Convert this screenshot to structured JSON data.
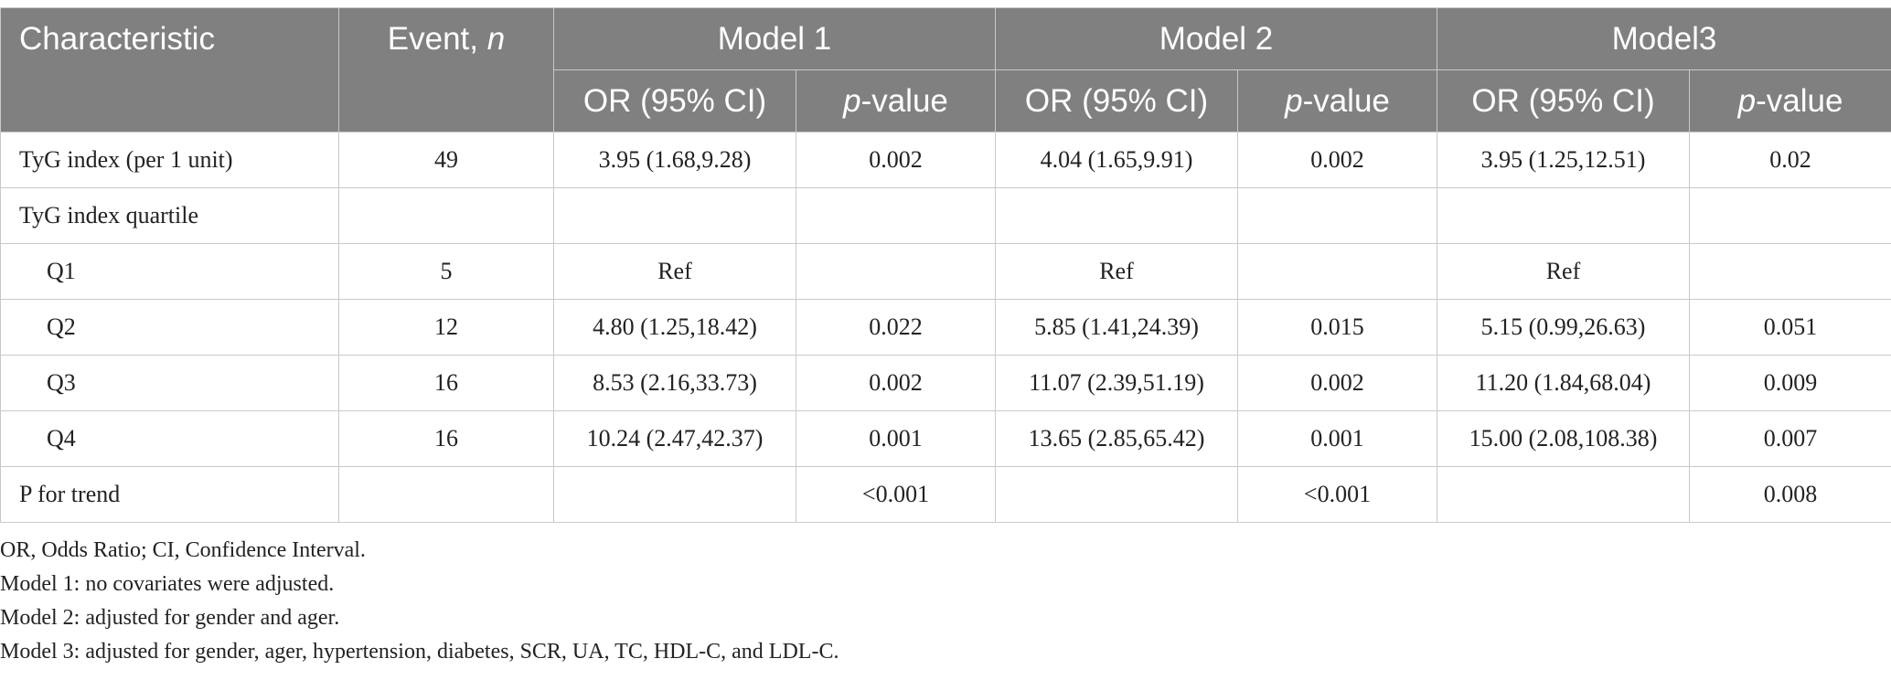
{
  "header": {
    "characteristic": "Characteristic",
    "event_prefix": "Event, ",
    "event_n": "n",
    "models": [
      "Model 1",
      "Model 2",
      "Model3"
    ],
    "or_label": "OR (95% CI)",
    "p_prefix": "p",
    "p_suffix": "-value"
  },
  "rows": [
    {
      "label": "TyG index (per 1 unit)",
      "event": "49",
      "m1_or": "3.95 (1.68,9.28)",
      "m1_p": "0.002",
      "m2_or": "4.04 (1.65,9.91)",
      "m2_p": "0.002",
      "m3_or": "3.95 (1.25,12.51)",
      "m3_p": "0.02"
    },
    {
      "label": "TyG index quartile",
      "event": "",
      "m1_or": "",
      "m1_p": "",
      "m2_or": "",
      "m2_p": "",
      "m3_or": "",
      "m3_p": ""
    },
    {
      "label": "Q1",
      "event": "5",
      "m1_or": "Ref",
      "m1_p": "",
      "m2_or": "Ref",
      "m2_p": "",
      "m3_or": "Ref",
      "m3_p": ""
    },
    {
      "label": "Q2",
      "event": "12",
      "m1_or": "4.80 (1.25,18.42)",
      "m1_p": "0.022",
      "m2_or": "5.85 (1.41,24.39)",
      "m2_p": "0.015",
      "m3_or": "5.15 (0.99,26.63)",
      "m3_p": "0.051"
    },
    {
      "label": "Q3",
      "event": "16",
      "m1_or": "8.53 (2.16,33.73)",
      "m1_p": "0.002",
      "m2_or": "11.07 (2.39,51.19)",
      "m2_p": "0.002",
      "m3_or": "11.20 (1.84,68.04)",
      "m3_p": "0.009"
    },
    {
      "label": "Q4",
      "event": "16",
      "m1_or": "10.24 (2.47,42.37)",
      "m1_p": "0.001",
      "m2_or": "13.65 (2.85,65.42)",
      "m2_p": "0.001",
      "m3_or": "15.00 (2.08,108.38)",
      "m3_p": "0.007"
    },
    {
      "label": "P for trend",
      "event": "",
      "m1_or": "",
      "m1_p": "<0.001",
      "m2_or": "",
      "m2_p": "<0.001",
      "m3_or": "",
      "m3_p": "0.008"
    }
  ],
  "notes": [
    "OR, Odds Ratio; CI, Confidence Interval.",
    "Model 1: no covariates were adjusted.",
    "Model 2: adjusted for gender and ager.",
    "Model 3: adjusted for gender, ager, hypertension, diabetes, SCR, UA, TC, HDL-C, and LDL-C."
  ]
}
